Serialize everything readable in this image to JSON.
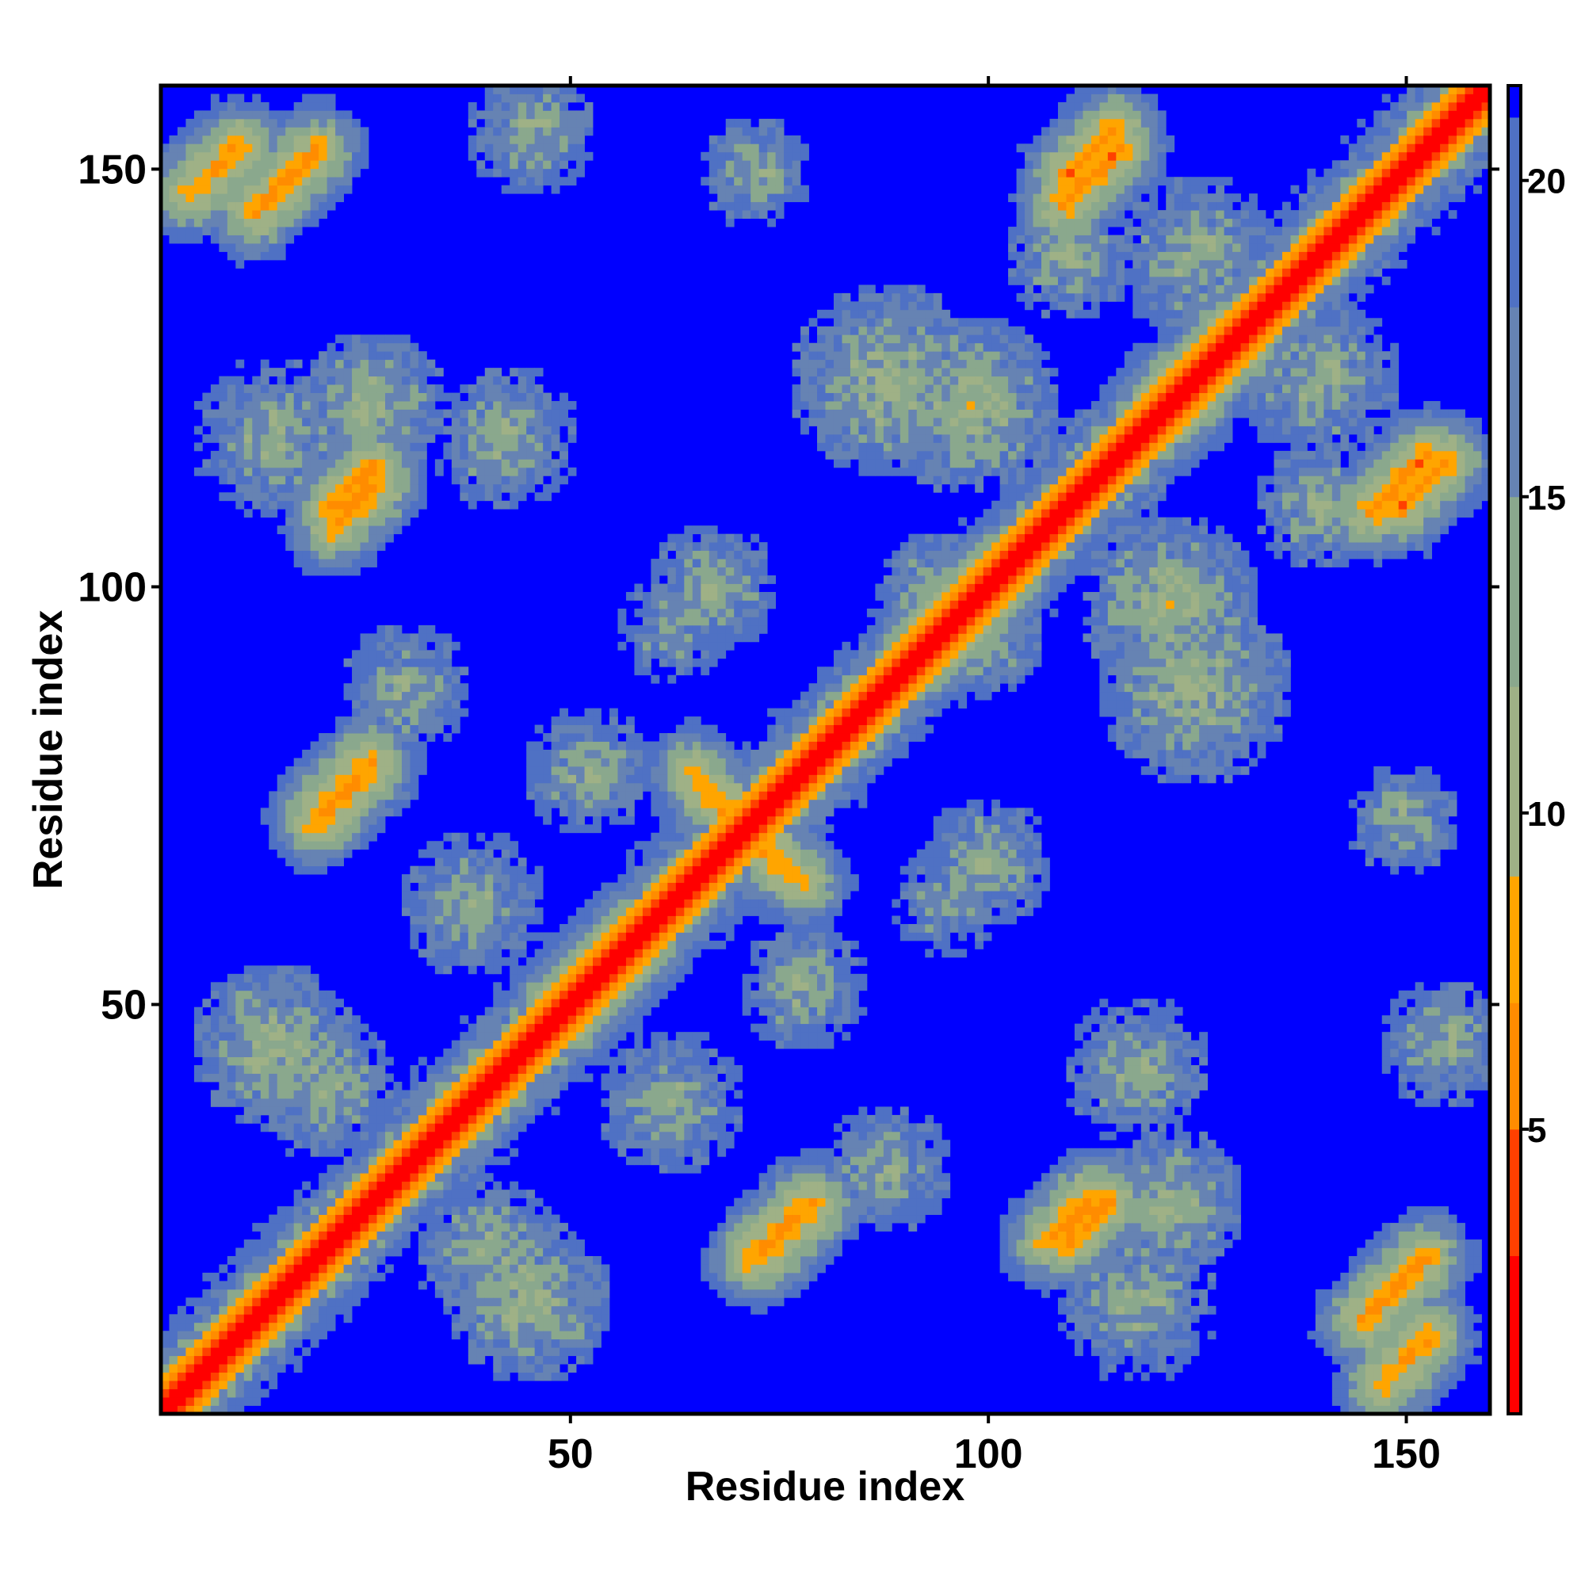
{
  "chart_data": {
    "type": "heatmap",
    "title": "",
    "xlabel": "Residue index",
    "ylabel": "Residue index",
    "n": 160,
    "xlim": [
      1,
      160
    ],
    "ylim": [
      1,
      160
    ],
    "x_ticks": [
      50,
      100,
      150
    ],
    "y_ticks": [
      50,
      100,
      150
    ],
    "x_tick_labels": [
      "50",
      "100",
      "150"
    ],
    "y_tick_labels": [
      "50",
      "100",
      "150"
    ],
    "colorbar": {
      "range": [
        0.5,
        21.5
      ],
      "ticks": [
        5,
        10,
        15,
        20
      ],
      "tick_labels": [
        "5",
        "10",
        "15",
        "20"
      ],
      "placement": "right"
    },
    "color_scale": [
      {
        "max": 3,
        "color": "#ff0000"
      },
      {
        "max": 5,
        "color": "#ff4000"
      },
      {
        "max": 7,
        "color": "#ff8c00"
      },
      {
        "max": 9,
        "color": "#ffa500"
      },
      {
        "max": 12,
        "color": "#9fb186"
      },
      {
        "max": 15,
        "color": "#8aa88d"
      },
      {
        "max": 18,
        "color": "#6683b3"
      },
      {
        "max": 21,
        "color": "#4f71c4"
      },
      {
        "max": 1000,
        "color": "#0000ff"
      }
    ],
    "contact_bands": [
      {
        "i": [
          9,
          22
        ],
        "j": [
          143,
          155
        ],
        "dir": 1,
        "d": 6
      },
      {
        "i": [
          20,
          28
        ],
        "j": [
          106,
          114
        ],
        "dir": 1,
        "d": 6
      },
      {
        "i": [
          17,
          28
        ],
        "j": [
          71,
          79
        ],
        "dir": 1,
        "d": 6
      },
      {
        "i": [
          63,
          72
        ],
        "j": [
          70,
          78
        ],
        "dir": -1,
        "d": 7
      },
      {
        "i": [
          70,
          80
        ],
        "j": [
          63,
          72
        ],
        "dir": -1,
        "d": 7
      },
      {
        "i": [
          71,
          81
        ],
        "j": [
          19,
          26
        ],
        "dir": 1,
        "d": 6
      },
      {
        "i": [
          108,
          117
        ],
        "j": [
          144,
          155
        ],
        "dir": 1,
        "d": 6
      },
      {
        "i": [
          108,
          116
        ],
        "j": [
          20,
          27
        ],
        "dir": 1,
        "d": 6
      },
      {
        "i": [
          148,
          157
        ],
        "j": [
          108,
          117
        ],
        "dir": 1,
        "d": 6
      },
      {
        "i": [
          146,
          155
        ],
        "j": [
          4,
          10
        ],
        "dir": 1,
        "d": 6
      },
      {
        "i": [
          45,
          62
        ],
        "j": [
          45,
          62
        ],
        "dir": 1,
        "d": 4
      },
      {
        "i": [
          89,
          105
        ],
        "j": [
          89,
          105
        ],
        "dir": 1,
        "d": 4
      },
      {
        "i": [
          118,
          133
        ],
        "j": [
          118,
          133
        ],
        "dir": 1,
        "d": 4
      }
    ],
    "contact_blobs": [
      {
        "x": 14,
        "y": 45,
        "r": 10,
        "d": 11
      },
      {
        "x": 26,
        "y": 122,
        "r": 9,
        "d": 11
      },
      {
        "x": 40,
        "y": 20,
        "r": 9,
        "d": 12
      },
      {
        "x": 38,
        "y": 62,
        "r": 9,
        "d": 12
      },
      {
        "x": 52,
        "y": 78,
        "r": 8,
        "d": 12
      },
      {
        "x": 62,
        "y": 95,
        "r": 7,
        "d": 13
      },
      {
        "x": 88,
        "y": 125,
        "r": 12,
        "d": 11
      },
      {
        "x": 95,
        "y": 98,
        "r": 9,
        "d": 11
      },
      {
        "x": 100,
        "y": 67,
        "r": 8,
        "d": 12
      },
      {
        "x": 122,
        "y": 98,
        "r": 11,
        "d": 11
      },
      {
        "x": 140,
        "y": 110,
        "r": 8,
        "d": 12
      },
      {
        "x": 125,
        "y": 140,
        "r": 10,
        "d": 12
      },
      {
        "x": 155,
        "y": 45,
        "r": 8,
        "d": 12
      },
      {
        "x": 118,
        "y": 42,
        "r": 9,
        "d": 12
      },
      {
        "x": 150,
        "y": 72,
        "r": 7,
        "d": 12
      },
      {
        "x": 118,
        "y": 14,
        "r": 10,
        "d": 12
      },
      {
        "x": 88,
        "y": 30,
        "r": 8,
        "d": 12
      }
    ]
  }
}
